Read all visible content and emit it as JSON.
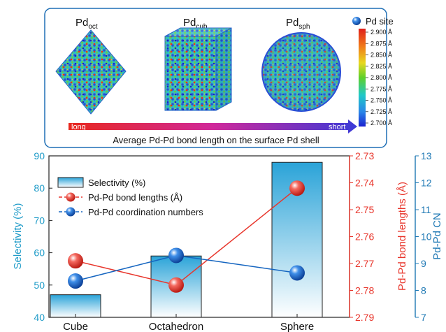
{
  "top_panel": {
    "particles": [
      {
        "base": "Pd",
        "sub": "oct"
      },
      {
        "base": "Pd",
        "sub": "cub"
      },
      {
        "base": "Pd",
        "sub": "sph"
      }
    ],
    "legend_label": "Pd site",
    "colorbar_ticks": [
      "2.900 Å",
      "2.875 Å",
      "2.850 Å",
      "2.825 Å",
      "2.800 Å",
      "2.775 Å",
      "2.750 Å",
      "2.725 Å",
      "2.700 Å"
    ],
    "arrow_left": "long",
    "arrow_right": "short",
    "caption": "Average Pd-Pd bond length on the surface Pd shell",
    "colors": {
      "frame": "#1f6fb5",
      "arrow_start": "#e8281e",
      "arrow_end": "#3a3ad8"
    }
  },
  "chart_data": {
    "type": "bar",
    "categories": [
      "Cube",
      "Octahedron",
      "Sphere"
    ],
    "series": [
      {
        "name": "Selectivity (%)",
        "type": "bar",
        "axis": "left",
        "values": [
          47,
          59,
          88
        ],
        "color": "#29a8d8"
      },
      {
        "name": "Pd-Pd bond lengths (Å)",
        "type": "line",
        "axis": "right_inner",
        "values": [
          2.769,
          2.778,
          2.742
        ],
        "color": "#e8352b"
      },
      {
        "name": "Pd-Pd coordination numbers",
        "type": "line",
        "axis": "right_outer",
        "values": [
          8.35,
          9.3,
          8.65
        ],
        "color": "#1565c0"
      }
    ],
    "axes": {
      "left": {
        "label": "Selectivity (%)",
        "ticks": [
          "40",
          "50",
          "60",
          "70",
          "80",
          "90"
        ],
        "ylim": [
          40,
          90
        ],
        "color": "#1e9bc8"
      },
      "right_inner": {
        "label": "Pd-Pd bond lengths (Å)",
        "ticks": [
          "2.73",
          "2.74",
          "2.75",
          "2.76",
          "2.77",
          "2.78",
          "2.79"
        ],
        "ylim": [
          2.79,
          2.73
        ],
        "inverted": true,
        "color": "#e8352b"
      },
      "right_outer": {
        "label": "Pd-Pd CN",
        "ticks": [
          "7",
          "8",
          "9",
          "10",
          "11",
          "12",
          "13"
        ],
        "ylim": [
          7,
          13
        ],
        "color": "#1e78b4"
      }
    },
    "legend_position": "top-left"
  }
}
